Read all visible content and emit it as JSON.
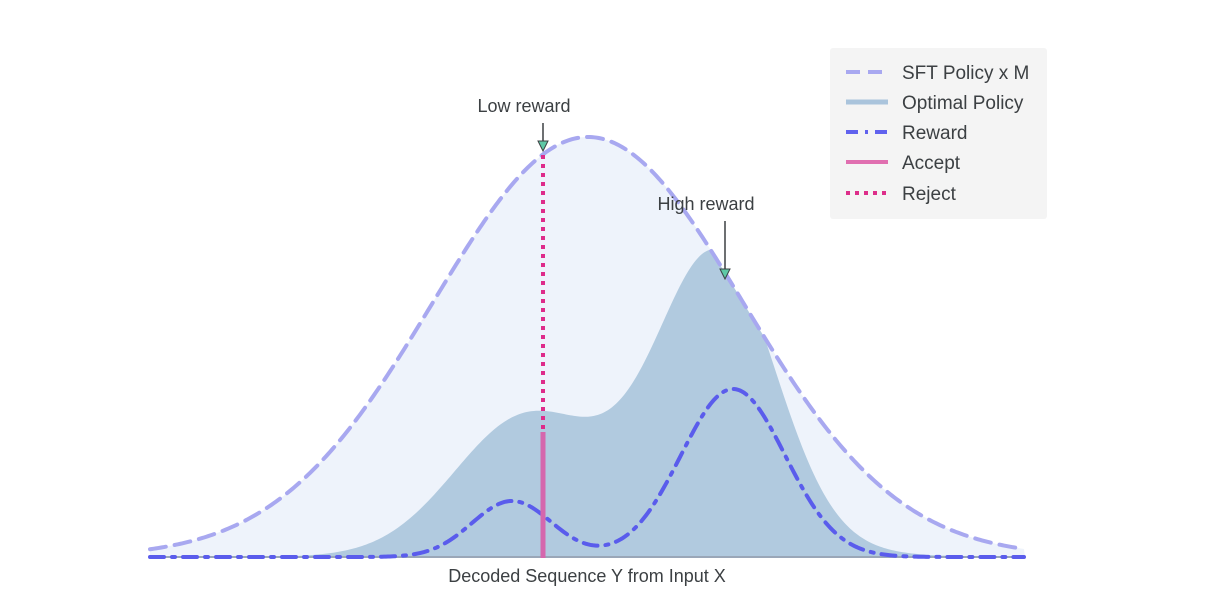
{
  "figure": {
    "legend": [
      {
        "label": "SFT Policy x M",
        "style": "long-dash",
        "color": "#a8a8f0"
      },
      {
        "label": "Optimal Policy",
        "style": "solid-light",
        "color": "#aac4dc"
      },
      {
        "label": "Reward",
        "style": "dash-dot",
        "color": "#6062ee"
      },
      {
        "label": "Accept",
        "style": "solid",
        "color": "#e06fb0"
      },
      {
        "label": "Reject",
        "style": "dotted",
        "color": "#dd2e8a"
      }
    ],
    "annotations": {
      "low_reward": "Low reward",
      "high_reward": "High reward"
    },
    "xlabel": "Decoded Sequence Y from Input X"
  },
  "colors": {
    "envelope_fill": "#eef3fb",
    "envelope_line": "#a8a8f0",
    "optimal_fill": "#b1cadf",
    "reward_line": "#5a5cec",
    "accept": "#d567ad",
    "reject": "#de2b8a",
    "legend_bg": "#f4f4f4",
    "arrow_head": "#5fc8a6"
  }
}
